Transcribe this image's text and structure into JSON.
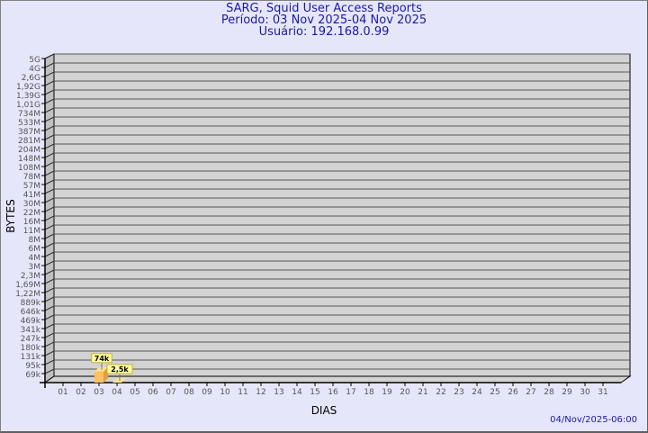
{
  "chart_data": {
    "type": "bar",
    "title": "SARG, Squid User Access Reports",
    "subtitle_period": "Período: 03 Nov 2025-04 Nov 2025",
    "subtitle_user": "Usuário: 192.168.0.99",
    "xlabel": "DIAS",
    "ylabel": "BYTES",
    "y_scale": "log",
    "grid": true,
    "categories": [
      "01",
      "02",
      "03",
      "04",
      "05",
      "06",
      "07",
      "08",
      "09",
      "10",
      "11",
      "12",
      "13",
      "14",
      "15",
      "16",
      "17",
      "18",
      "19",
      "20",
      "21",
      "22",
      "23",
      "24",
      "25",
      "26",
      "27",
      "28",
      "29",
      "30",
      "31"
    ],
    "y_ticks": [
      {
        "label": "69k",
        "value": 69000
      },
      {
        "label": "95k",
        "value": 95000
      },
      {
        "label": "131k",
        "value": 131000
      },
      {
        "label": "180k",
        "value": 180000
      },
      {
        "label": "247k",
        "value": 247000
      },
      {
        "label": "341k",
        "value": 341000
      },
      {
        "label": "469k",
        "value": 469000
      },
      {
        "label": "646k",
        "value": 646000
      },
      {
        "label": "889k",
        "value": 889000
      },
      {
        "label": "1,22M",
        "value": 1220000
      },
      {
        "label": "1,69M",
        "value": 1690000
      },
      {
        "label": "2,3M",
        "value": 2300000
      },
      {
        "label": "3M",
        "value": 3000000
      },
      {
        "label": "4M",
        "value": 4000000
      },
      {
        "label": "6M",
        "value": 6000000
      },
      {
        "label": "8M",
        "value": 8000000
      },
      {
        "label": "11M",
        "value": 11000000
      },
      {
        "label": "16M",
        "value": 16000000
      },
      {
        "label": "22M",
        "value": 22000000
      },
      {
        "label": "30M",
        "value": 30000000
      },
      {
        "label": "41M",
        "value": 41000000
      },
      {
        "label": "57M",
        "value": 57000000
      },
      {
        "label": "78M",
        "value": 78000000
      },
      {
        "label": "108M",
        "value": 108000000
      },
      {
        "label": "148M",
        "value": 148000000
      },
      {
        "label": "204M",
        "value": 204000000
      },
      {
        "label": "281M",
        "value": 281000000
      },
      {
        "label": "387M",
        "value": 387000000
      },
      {
        "label": "533M",
        "value": 533000000
      },
      {
        "label": "734M",
        "value": 734000000
      },
      {
        "label": "1,01G",
        "value": 1010000000
      },
      {
        "label": "1,39G",
        "value": 1390000000
      },
      {
        "label": "1,92G",
        "value": 1920000000
      },
      {
        "label": "2,6G",
        "value": 2600000000
      },
      {
        "label": "4G",
        "value": 4000000000
      },
      {
        "label": "5G",
        "value": 5000000000
      }
    ],
    "bars": [
      {
        "category": "03",
        "value": 74000,
        "label": "74k",
        "color": "#ffc060"
      },
      {
        "category": "04",
        "value": 2500,
        "label": "2,5k",
        "color": "#ffe090"
      }
    ],
    "colors": {
      "plot_bg": "#d3d3d3",
      "side_wall": "#c0c0c0",
      "label_bg": "#ffff99",
      "title": "#1a1aa6",
      "bg": "#e6e6fa"
    }
  },
  "footer": {
    "timestamp": "04/Nov/2025-06:00"
  }
}
